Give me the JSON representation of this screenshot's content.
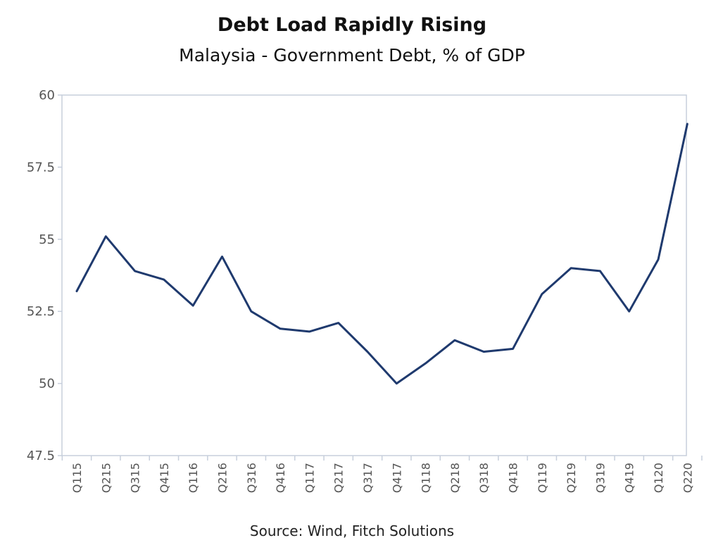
{
  "chart_data": {
    "type": "line",
    "title": "Debt Load Rapidly Rising",
    "subtitle": "Malaysia - Government Debt, % of GDP",
    "source": "Source: Wind, Fitch Solutions",
    "xlabel": "",
    "ylabel": "",
    "ylim": [
      47.5,
      60
    ],
    "yticks": [
      47.5,
      50,
      52.5,
      55,
      57.5,
      60
    ],
    "ytick_labels": [
      "47.5",
      "50",
      "52.5",
      "55",
      "57.5",
      "60"
    ],
    "categories": [
      "Q115",
      "Q215",
      "Q315",
      "Q415",
      "Q116",
      "Q216",
      "Q316",
      "Q416",
      "Q117",
      "Q217",
      "Q317",
      "Q417",
      "Q118",
      "Q218",
      "Q318",
      "Q418",
      "Q119",
      "Q219",
      "Q319",
      "Q419",
      "Q120",
      "Q220"
    ],
    "series": [
      {
        "values": [
          53.2,
          55.1,
          53.9,
          53.6,
          52.7,
          54.4,
          52.5,
          51.9,
          51.8,
          52.1,
          51.1,
          50.0,
          50.7,
          51.5,
          51.1,
          51.2,
          53.1,
          54.0,
          53.9,
          52.5,
          54.3,
          59.0
        ],
        "color": "#1f3a6e"
      }
    ],
    "grid": false,
    "axis_color": "#c7cfdc"
  }
}
